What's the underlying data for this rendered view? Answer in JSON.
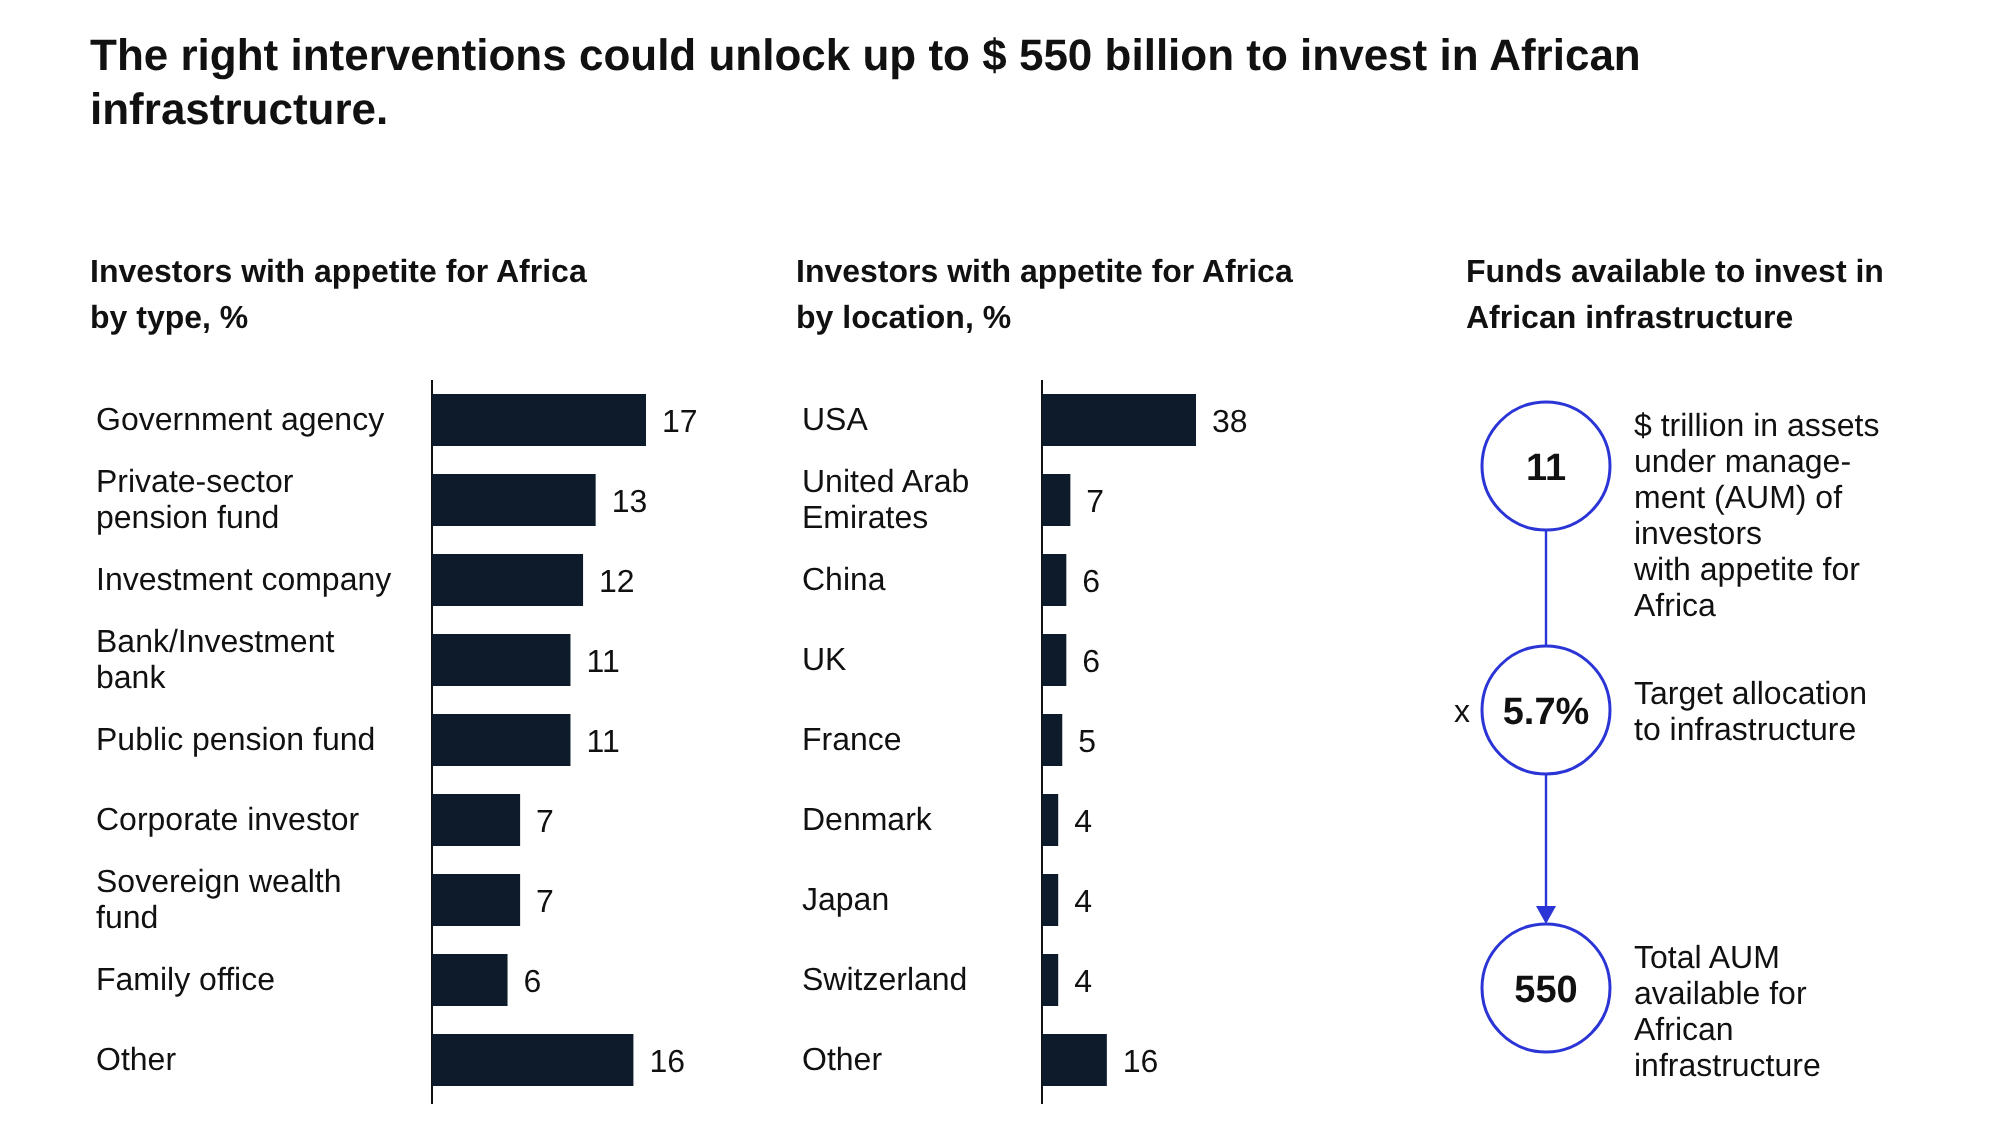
{
  "chart_data": [
    {
      "type": "bar",
      "orientation": "horizontal",
      "title": "The right interventions could unlock up to $ 550 billion to invest in African infrastructure.",
      "subtitle": "Investors with appetite for Africa by type, %",
      "categories": [
        "Government agency",
        "Private-sector pension fund",
        "Investment company",
        "Bank/Investment bank",
        "Public pension fund",
        "Corporate investor",
        "Sovereign wealth fund",
        "Family office",
        "Other"
      ],
      "values": [
        17,
        13,
        12,
        11,
        11,
        7,
        7,
        6,
        16
      ],
      "color": "#0d1b2a",
      "xlim": [
        0,
        17
      ],
      "tick_labels": "y",
      "data_labels": true
    },
    {
      "type": "bar",
      "orientation": "horizontal",
      "title": "Investors with appetite for Africa by location, %",
      "categories": [
        "USA",
        "United Arab Emirates",
        "China",
        "UK",
        "France",
        "Denmark",
        "Japan",
        "Switzerland",
        "Other"
      ],
      "values": [
        38,
        7,
        6,
        6,
        5,
        4,
        4,
        4,
        16
      ],
      "color": "#0d1b2a",
      "xlim": [
        0,
        38
      ],
      "tick_labels": "y",
      "data_labels": true
    },
    {
      "type": "other",
      "title": "Funds available to invest in African infrastructure",
      "categories": [
        "$ trillion in assets\nunder manage-\nment (AUM) of\ninvestors\nwith appetite for\nAfrica",
        "Target allocation\nto infrastructure",
        "Total AUM\navailable for\nAfrican\ninfrastructure"
      ],
      "values": [
        11,
        5.7,
        550
      ],
      "value_labels": [
        "11",
        "5.7%",
        "550"
      ],
      "annotations": [
        "x"
      ],
      "color": "#2b35d6"
    }
  ]
}
